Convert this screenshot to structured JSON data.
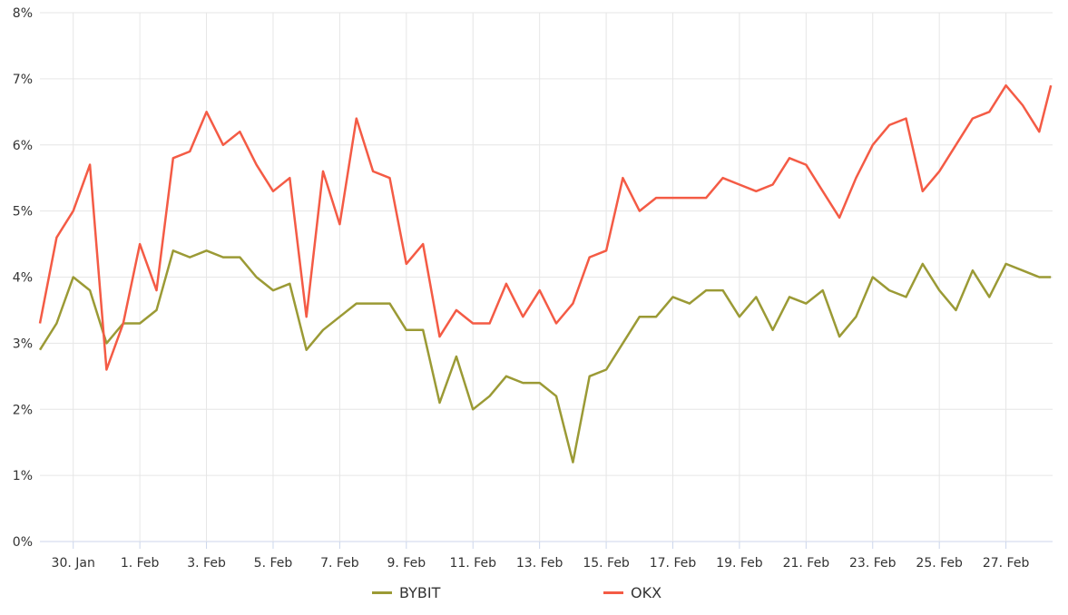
{
  "chart_data": {
    "type": "line",
    "title": "",
    "xlabel": "",
    "ylabel": "",
    "x_unit": "days since 29 Jan 00:00",
    "x": [
      0,
      0.5,
      1,
      1.5,
      2,
      2.5,
      3,
      3.5,
      4,
      4.5,
      5,
      5.5,
      6,
      6.5,
      7,
      7.5,
      8,
      8.5,
      9,
      9.5,
      10,
      10.5,
      11,
      11.5,
      12,
      12.5,
      13,
      13.5,
      14,
      14.5,
      15,
      15.5,
      16,
      16.5,
      17,
      17.5,
      18,
      18.5,
      19,
      19.5,
      20,
      20.5,
      21,
      21.5,
      22,
      22.5,
      23,
      23.5,
      24,
      24.5,
      25,
      25.5,
      26,
      26.5,
      27,
      27.5,
      28,
      28.5,
      29,
      29.5,
      30,
      30.35
    ],
    "xlim": [
      0,
      30.4
    ],
    "ylim": [
      0,
      8
    ],
    "yticks": [
      0,
      1,
      2,
      3,
      4,
      5,
      6,
      7,
      8
    ],
    "ytick_labels": [
      "0%",
      "1%",
      "2%",
      "3%",
      "4%",
      "5%",
      "6%",
      "7%",
      "8%"
    ],
    "xticks": [
      1,
      3,
      5,
      7,
      9,
      11,
      13,
      15,
      17,
      19,
      21,
      23,
      25,
      27,
      29
    ],
    "xtick_labels": [
      "30. Jan",
      "1. Feb",
      "3. Feb",
      "5. Feb",
      "7. Feb",
      "9. Feb",
      "11. Feb",
      "13. Feb",
      "15. Feb",
      "17. Feb",
      "19. Feb",
      "21. Feb",
      "23. Feb",
      "25. Feb",
      "27. Feb"
    ],
    "grid": true,
    "legend_position": "bottom-center",
    "series": [
      {
        "name": "BYBIT",
        "color": "#9b9a35",
        "values": [
          2.9,
          3.3,
          4.0,
          3.8,
          3.0,
          3.3,
          3.3,
          3.5,
          4.4,
          4.3,
          4.4,
          4.3,
          4.3,
          4.0,
          3.8,
          3.9,
          2.9,
          3.2,
          3.4,
          3.6,
          3.6,
          3.6,
          3.2,
          3.2,
          2.1,
          2.8,
          2.0,
          2.2,
          2.5,
          2.4,
          2.4,
          2.2,
          1.2,
          2.5,
          2.6,
          3.0,
          3.4,
          3.4,
          3.7,
          3.6,
          3.8,
          3.8,
          3.4,
          3.7,
          3.2,
          3.7,
          3.6,
          3.8,
          3.1,
          3.4,
          4.0,
          3.8,
          3.7,
          4.2,
          3.8,
          3.5,
          4.1,
          3.7,
          4.2,
          4.1,
          4.0,
          4.0
        ]
      },
      {
        "name": "OKX",
        "color": "#f45b45",
        "values": [
          3.3,
          4.6,
          5.0,
          5.7,
          2.6,
          3.3,
          4.5,
          3.8,
          5.8,
          5.9,
          6.5,
          6.0,
          6.2,
          5.7,
          5.3,
          5.5,
          3.4,
          5.6,
          4.8,
          6.4,
          5.6,
          5.5,
          4.2,
          4.5,
          3.1,
          3.5,
          3.3,
          3.3,
          3.9,
          3.4,
          3.8,
          3.3,
          3.6,
          4.3,
          4.4,
          5.5,
          5.0,
          5.2,
          5.2,
          5.2,
          5.2,
          5.5,
          5.4,
          5.3,
          5.4,
          5.8,
          5.7,
          5.3,
          4.9,
          5.5,
          6.0,
          6.3,
          6.4,
          5.3,
          5.6,
          6.0,
          6.4,
          6.5,
          6.9,
          6.6,
          6.2,
          6.9
        ]
      }
    ]
  }
}
